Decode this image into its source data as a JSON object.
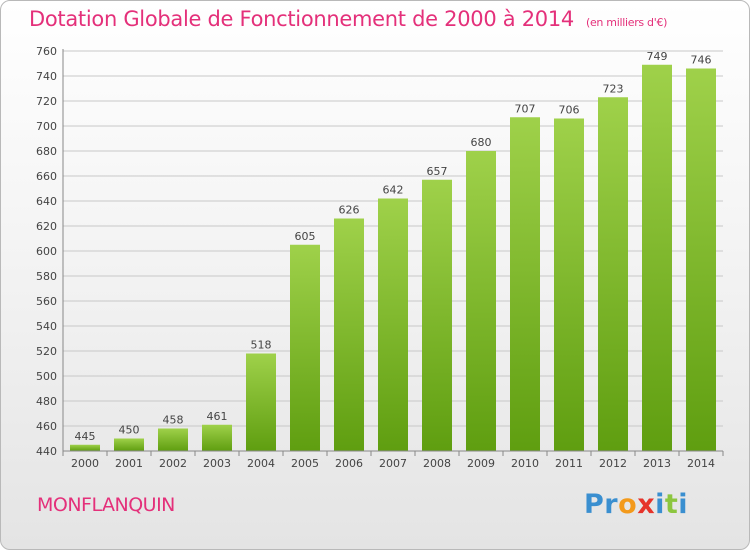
{
  "header": {
    "title": "Dotation Globale de Fonctionnement de 2000 à 2014",
    "unit": "(en milliers d'€)"
  },
  "footer": {
    "place": "MONFLANQUIN",
    "logo_text": "Proxiti"
  },
  "colors": {
    "title": "#e4307a",
    "bar_top": "#9fd14a",
    "bar_bottom": "#5f9e10",
    "logo": [
      "#3a8fd0",
      "#3a8fd0",
      "#f39a1b",
      "#e6332a",
      "#3a8fd0",
      "#8cc63f",
      "#3a8fd0"
    ]
  },
  "chart_data": {
    "type": "bar",
    "categories": [
      "2000",
      "2001",
      "2002",
      "2003",
      "2004",
      "2005",
      "2006",
      "2007",
      "2008",
      "2009",
      "2010",
      "2011",
      "2012",
      "2013",
      "2014"
    ],
    "values": [
      445,
      450,
      458,
      461,
      518,
      605,
      626,
      642,
      657,
      680,
      707,
      706,
      723,
      749,
      746
    ],
    "title": "Dotation Globale de Fonctionnement de 2000 à 2014",
    "ylim": [
      440,
      760
    ],
    "yticks": [
      440,
      460,
      480,
      500,
      520,
      540,
      560,
      580,
      600,
      620,
      640,
      660,
      680,
      700,
      720,
      740,
      760
    ],
    "grid": true
  }
}
